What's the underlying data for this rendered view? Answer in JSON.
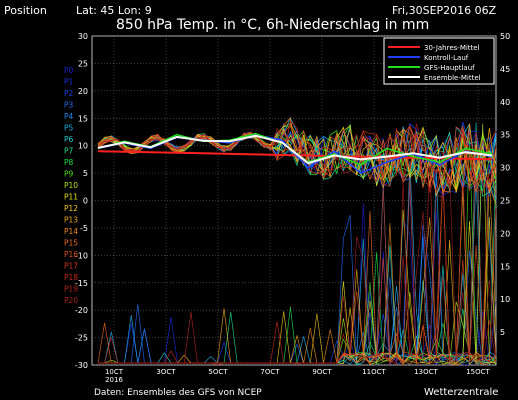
{
  "header": {
    "position_label": "Position",
    "lat_lon": "Lat: 45 Lon: 9",
    "run_time": "Fri,30SEP2016 06Z",
    "title": "850 hPa Temp. in °C, 6h-Niederschlag in mm"
  },
  "footer": {
    "source": "Daten: Ensembles des GFS von NCEP",
    "brand": "Wetterzentrale"
  },
  "members": [
    "P0",
    "P1",
    "P2",
    "P3",
    "P4",
    "P5",
    "P6",
    "P7",
    "P8",
    "P9",
    "P10",
    "P11",
    "P12",
    "P13",
    "P14",
    "P15",
    "P16",
    "P17",
    "P18",
    "P19",
    "P20"
  ],
  "member_colors": [
    "#1d1dd0",
    "#1a2ee6",
    "#1946ee",
    "#1f6cf4",
    "#1f8ff6",
    "#1fb3ee",
    "#1fd2cf",
    "#19e08d",
    "#1be24a",
    "#4ce41f",
    "#b8e21f",
    "#e6e21f",
    "#f0c81f",
    "#f0a81f",
    "#ee8a1f",
    "#ec6c1f",
    "#e04e1f",
    "#d23a1f",
    "#c42c1f",
    "#b6241f",
    "#a61f1f"
  ],
  "legend": [
    {
      "label": "30-Jahres-Mittel",
      "color": "#ff2020"
    },
    {
      "label": "Kontroll-Lauf",
      "color": "#2040ff"
    },
    {
      "label": "GFS-Hauptlauf",
      "color": "#20e020"
    },
    {
      "label": "Ensemble-Mittel",
      "color": "#ffffff"
    }
  ],
  "chart_data": {
    "type": "line",
    "title": "850 hPa Temp. in °C, 6h-Niederschlag in mm",
    "x_tick_labels": [
      "10CT\n2016",
      "3OCT",
      "5OCT",
      "7OCT",
      "9OCT",
      "11OCT",
      "13OCT",
      "15OCT"
    ],
    "ylim_left": [
      -30,
      30
    ],
    "yticks_left": [
      30,
      25,
      20,
      15,
      10,
      5,
      0,
      -5,
      -10,
      -15,
      -20,
      -25,
      -30
    ],
    "ylim_right": [
      0,
      50
    ],
    "yticks_right": [
      50,
      45,
      40,
      35,
      30,
      25,
      20,
      15,
      10,
      5
    ],
    "grid": true,
    "legend_position": "top-right",
    "series": [
      {
        "name": "30-Jahres-Mittel",
        "values": [
          9.0,
          8.9,
          8.8,
          8.7,
          8.6,
          8.5,
          8.4,
          8.3,
          8.2,
          8.1,
          8.0,
          7.9,
          7.8,
          7.7,
          7.6,
          7.5
        ]
      },
      {
        "name": "Kontroll-Lauf",
        "values": [
          9.5,
          10.5,
          9.5,
          11.5,
          11.0,
          10.5,
          12.0,
          11.0,
          6.0,
          9.0,
          5.0,
          7.0,
          8.5,
          6.5,
          9.0,
          8.0
        ]
      },
      {
        "name": "GFS-Hauptlauf",
        "values": [
          9.5,
          10.8,
          9.8,
          12.0,
          10.8,
          11.0,
          12.2,
          10.5,
          7.0,
          8.5,
          6.5,
          9.5,
          8.0,
          7.0,
          9.5,
          8.5
        ]
      },
      {
        "name": "Ensemble-Mittel",
        "values": [
          9.6,
          10.6,
          9.7,
          11.6,
          10.9,
          10.8,
          11.8,
          10.6,
          6.8,
          8.2,
          7.5,
          8.0,
          8.6,
          7.8,
          8.8,
          8.2
        ]
      }
    ]
  }
}
